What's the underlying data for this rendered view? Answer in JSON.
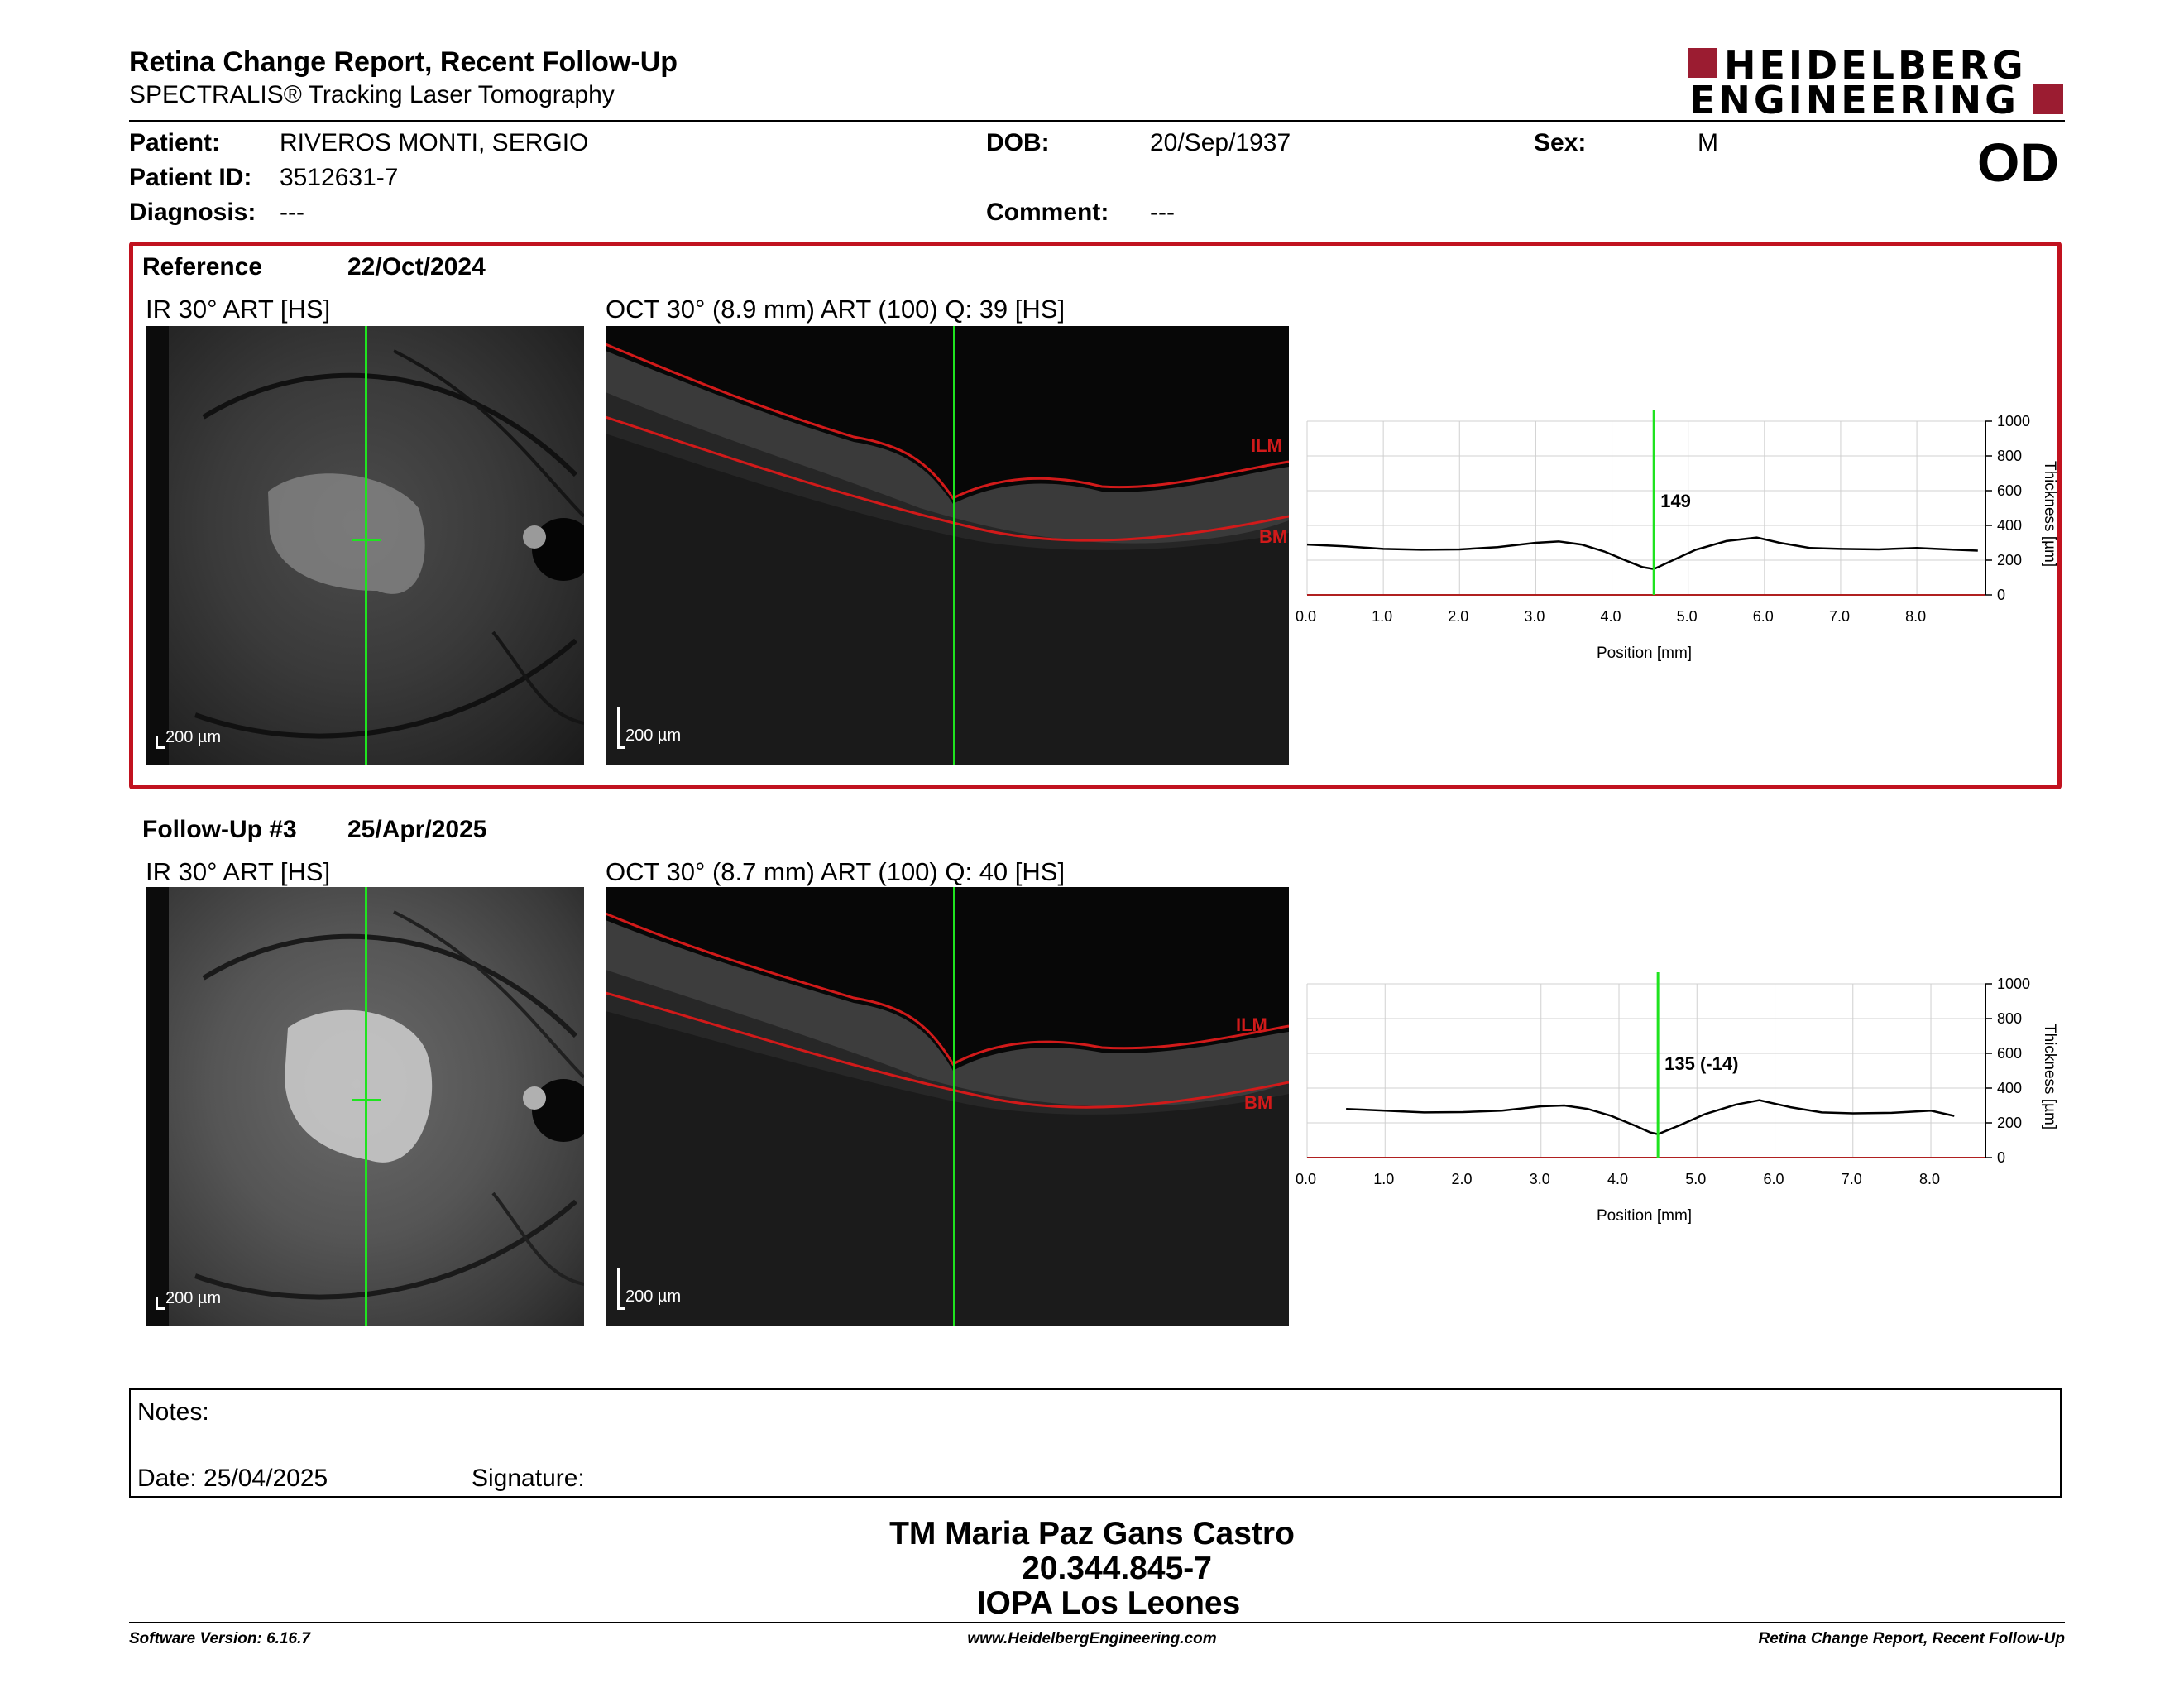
{
  "header": {
    "title": "Retina Change Report, Recent Follow-Up",
    "subtitle": "SPECTRALIS® Tracking Laser Tomography",
    "logo_line1": "HEIDELBERG",
    "logo_line2": "ENGINEERING",
    "eye": "OD"
  },
  "patient": {
    "patient_label": "Patient:",
    "patient_value": "RIVEROS MONTI, SERGIO",
    "dob_label": "DOB:",
    "dob_value": "20/Sep/1937",
    "sex_label": "Sex:",
    "sex_value": "M",
    "id_label": "Patient ID:",
    "id_value": "3512631-7",
    "diagnosis_label": "Diagnosis:",
    "diagnosis_value": "---",
    "comment_label": "Comment:",
    "comment_value": "---"
  },
  "exams": [
    {
      "label": "Reference",
      "date": "22/Oct/2024",
      "ir_title": "IR 30° ART [HS]",
      "oct_title": "OCT 30° (8.9 mm) ART (100) Q: 39 [HS]",
      "scale_ir": "200 µm",
      "scale_oct": "200 µm",
      "ilm": "ILM",
      "bm": "BM",
      "value_label": "149"
    },
    {
      "label": "Follow-Up #3",
      "date": "25/Apr/2025",
      "ir_title": "IR 30° ART [HS]",
      "oct_title": "OCT 30° (8.7 mm) ART (100) Q: 40 [HS]",
      "scale_ir": "200 µm",
      "scale_oct": "200 µm",
      "ilm": "ILM",
      "bm": "BM",
      "value_label": "135 (-14)"
    }
  ],
  "chart_data": [
    {
      "type": "line",
      "xlabel": "Position [mm]",
      "ylabel": "Thickness [µm]",
      "xlim": [
        0,
        8.9
      ],
      "ylim": [
        0,
        1000
      ],
      "xticks": [
        "0.0",
        "1.0",
        "2.0",
        "3.0",
        "4.0",
        "5.0",
        "6.0",
        "7.0",
        "8.0"
      ],
      "yticks": [
        "0",
        "200",
        "400",
        "600",
        "800",
        "1000"
      ],
      "marker_position": 4.55,
      "marker_value": 149,
      "grid": true,
      "series": [
        {
          "x": [
            0.0,
            0.5,
            1.0,
            1.5,
            2.0,
            2.5,
            3.0,
            3.3,
            3.6,
            3.9,
            4.2,
            4.4,
            4.55,
            4.8,
            5.1,
            5.5,
            5.9,
            6.2,
            6.6,
            7.0,
            7.5,
            8.0,
            8.5,
            8.8
          ],
          "values": [
            290,
            280,
            265,
            260,
            262,
            275,
            300,
            308,
            290,
            250,
            195,
            160,
            149,
            200,
            260,
            310,
            330,
            300,
            270,
            265,
            262,
            270,
            260,
            255
          ]
        }
      ]
    },
    {
      "type": "line",
      "xlabel": "Position [mm]",
      "ylabel": "Thickness [µm]",
      "xlim": [
        0,
        8.7
      ],
      "ylim": [
        0,
        1000
      ],
      "xticks": [
        "0.0",
        "1.0",
        "2.0",
        "3.0",
        "4.0",
        "5.0",
        "6.0",
        "7.0",
        "8.0"
      ],
      "yticks": [
        "0",
        "200",
        "400",
        "600",
        "800",
        "1000"
      ],
      "marker_position": 4.5,
      "marker_value": 135,
      "grid": true,
      "series": [
        {
          "x": [
            0.5,
            1.0,
            1.5,
            2.0,
            2.5,
            3.0,
            3.3,
            3.6,
            3.9,
            4.2,
            4.4,
            4.5,
            4.8,
            5.1,
            5.5,
            5.8,
            6.2,
            6.6,
            7.0,
            7.5,
            8.0,
            8.3
          ],
          "values": [
            280,
            270,
            260,
            262,
            270,
            295,
            300,
            280,
            240,
            185,
            145,
            135,
            190,
            250,
            305,
            330,
            290,
            260,
            255,
            258,
            270,
            240
          ]
        }
      ]
    }
  ],
  "notes": {
    "notes_label": "Notes:",
    "date_label": "Date: 25/04/2025",
    "signature_label": "Signature:"
  },
  "signatory": {
    "name": "TM Maria Paz Gans Castro",
    "id": "20.344.845-7",
    "org": "IOPA Los Leones"
  },
  "footer": {
    "version": "Software Version: 6.16.7",
    "website": "www.HeidelbergEngineering.com",
    "report": "Retina Change Report, Recent Follow-Up"
  }
}
